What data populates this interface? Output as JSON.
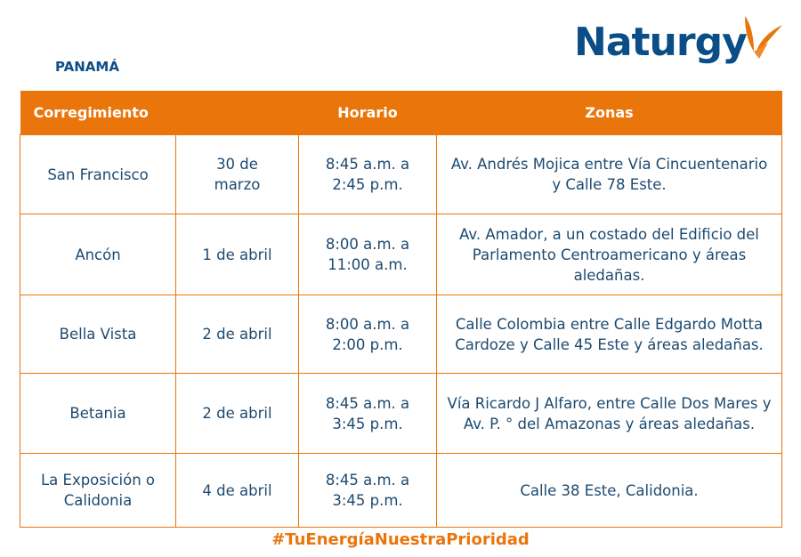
{
  "header": {
    "country": "PANAMÁ",
    "logo_text": "Naturgy"
  },
  "table": {
    "columns": [
      "Corregimiento",
      "Horario",
      "Zonas"
    ],
    "rows": [
      {
        "corregimiento": "San Francisco",
        "fecha": "30 de marzo",
        "horario": "8:45 a.m. a 2:45 p.m.",
        "zonas": "Av. Andrés Mojica entre Vía Cincuentenario y Calle 78 Este."
      },
      {
        "corregimiento": "Ancón",
        "fecha": "1 de abril",
        "horario": "8:00 a.m. a 11:00 a.m.",
        "zonas": "Av. Amador, a un costado del Edificio del Parlamento Centroamericano y áreas aledañas."
      },
      {
        "corregimiento": "Bella Vista",
        "fecha": "2 de abril",
        "horario": "8:00 a.m. a 2:00 p.m.",
        "zonas": "Calle Colombia entre Calle Edgardo Motta Cardoze y Calle 45 Este y áreas aledañas."
      },
      {
        "corregimiento": "Betania",
        "fecha": "2 de abril",
        "horario": "8:45 a.m. a 3:45 p.m.",
        "zonas": "Vía Ricardo J Alfaro, entre Calle Dos Mares y Av. P. ° del Amazonas y áreas aledañas."
      },
      {
        "corregimiento": "La Exposición o Calidonia",
        "fecha": "4 de abril",
        "horario": "8:45 a.m. a 3:45 p.m.",
        "zonas": "Calle 38 Este, Calidonia."
      }
    ]
  },
  "footer": {
    "hashtag": "#TuEnergíaNuestraPrioridad"
  },
  "colors": {
    "accent": "#e9750b",
    "text": "#1d4a70",
    "brand_blue": "#0b4d86"
  }
}
